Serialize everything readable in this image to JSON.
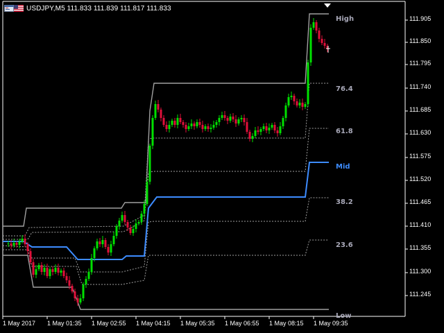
{
  "header": {
    "symbol": "USDJPY,M5",
    "ohlc": "111.833 111.839 111.817 111.833",
    "icons": [
      "terminal-window-icon",
      "us-flag-icon"
    ]
  },
  "levels": {
    "high": "High",
    "l76": "76.4",
    "l61": "61.8",
    "mid": "Mid",
    "l38": "38.2",
    "l23": "23.6",
    "low": "Low"
  },
  "colors": {
    "bull": "#00e000",
    "bear": "#e0103a",
    "mid": "#3d8cff",
    "level_line": "#a0a0a0",
    "level_label": "#a8a8b8",
    "mid_label": "#3d8cff"
  },
  "chart_data": {
    "type": "candlestick",
    "symbol": "USDJPY",
    "timeframe": "M5",
    "price_axis": [
      "111.905",
      "111.850",
      "111.795",
      "111.740",
      "111.685",
      "111.630",
      "111.575",
      "111.520",
      "111.465",
      "111.410",
      "111.355",
      "111.300",
      "111.245"
    ],
    "time_axis": [
      "1 May 2017",
      "1 May 01:35",
      "1 May 02:55",
      "1 May 04:15",
      "1 May 05:35",
      "1 May 06:55",
      "1 May 08:15",
      "1 May 09:35"
    ]
  }
}
